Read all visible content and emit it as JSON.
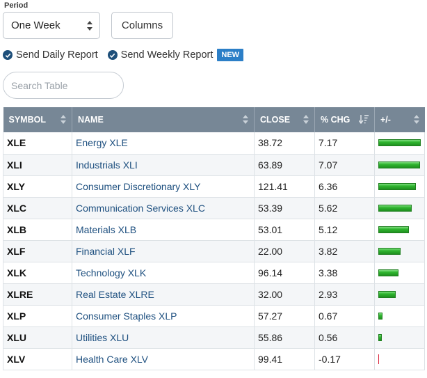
{
  "period": {
    "label": "Period",
    "selected": "One Week"
  },
  "columns_label": "Columns",
  "reports": {
    "daily": "Send Daily Report",
    "weekly": "Send Weekly Report",
    "new_badge": "NEW"
  },
  "search": {
    "placeholder": "Search Table",
    "value": ""
  },
  "table": {
    "headers": [
      "SYMBOL",
      "NAME",
      "CLOSE",
      "% CHG",
      "+/-"
    ],
    "sorted_column": "% CHG",
    "sort_direction": "descending",
    "bar_colors": {
      "positive": "#2fb52f",
      "negative": "#d9233b"
    },
    "rows": [
      {
        "symbol": "XLE",
        "name": "Energy XLE",
        "close": "38.72",
        "pct": "7.17",
        "change": 7.17
      },
      {
        "symbol": "XLI",
        "name": "Industrials XLI",
        "close": "63.89",
        "pct": "7.07",
        "change": 7.07
      },
      {
        "symbol": "XLY",
        "name": "Consumer Discretionary XLY",
        "close": "121.41",
        "pct": "6.36",
        "change": 6.36
      },
      {
        "symbol": "XLC",
        "name": "Communication Services XLC",
        "close": "53.39",
        "pct": "5.62",
        "change": 5.62
      },
      {
        "symbol": "XLB",
        "name": "Materials XLB",
        "close": "53.01",
        "pct": "5.12",
        "change": 5.12
      },
      {
        "symbol": "XLF",
        "name": "Financial XLF",
        "close": "22.00",
        "pct": "3.82",
        "change": 3.82
      },
      {
        "symbol": "XLK",
        "name": "Technology XLK",
        "close": "96.14",
        "pct": "3.38",
        "change": 3.38
      },
      {
        "symbol": "XLRE",
        "name": "Real Estate XLRE",
        "close": "32.00",
        "pct": "2.93",
        "change": 2.93
      },
      {
        "symbol": "XLP",
        "name": "Consumer Staples XLP",
        "close": "57.27",
        "pct": "0.67",
        "change": 0.67
      },
      {
        "symbol": "XLU",
        "name": "Utilities XLU",
        "close": "55.86",
        "pct": "0.56",
        "change": 0.56
      },
      {
        "symbol": "XLV",
        "name": "Health Care XLV",
        "close": "99.41",
        "pct": "-0.17",
        "change": -0.17
      }
    ]
  }
}
